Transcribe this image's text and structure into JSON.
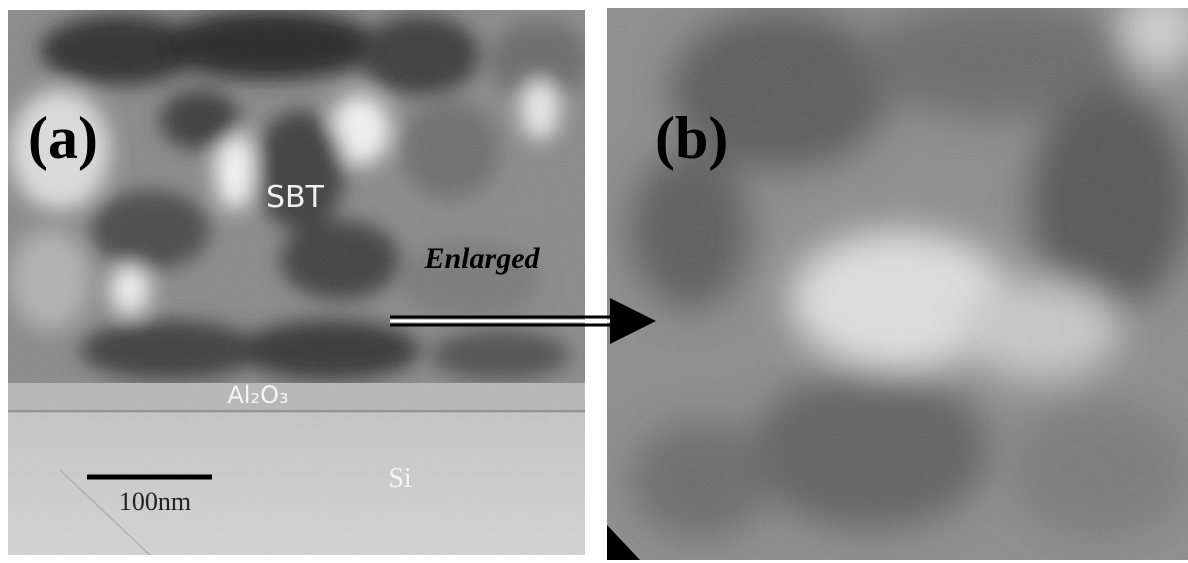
{
  "panels": [
    {
      "label": "(a)",
      "annotations": {
        "layer_top": "SBT",
        "layer_middle": "Al₂O₃",
        "substrate": "Si",
        "scale_bar": "100nm"
      }
    },
    {
      "label": "(b)"
    }
  ],
  "arrow_label": "Enlarged"
}
